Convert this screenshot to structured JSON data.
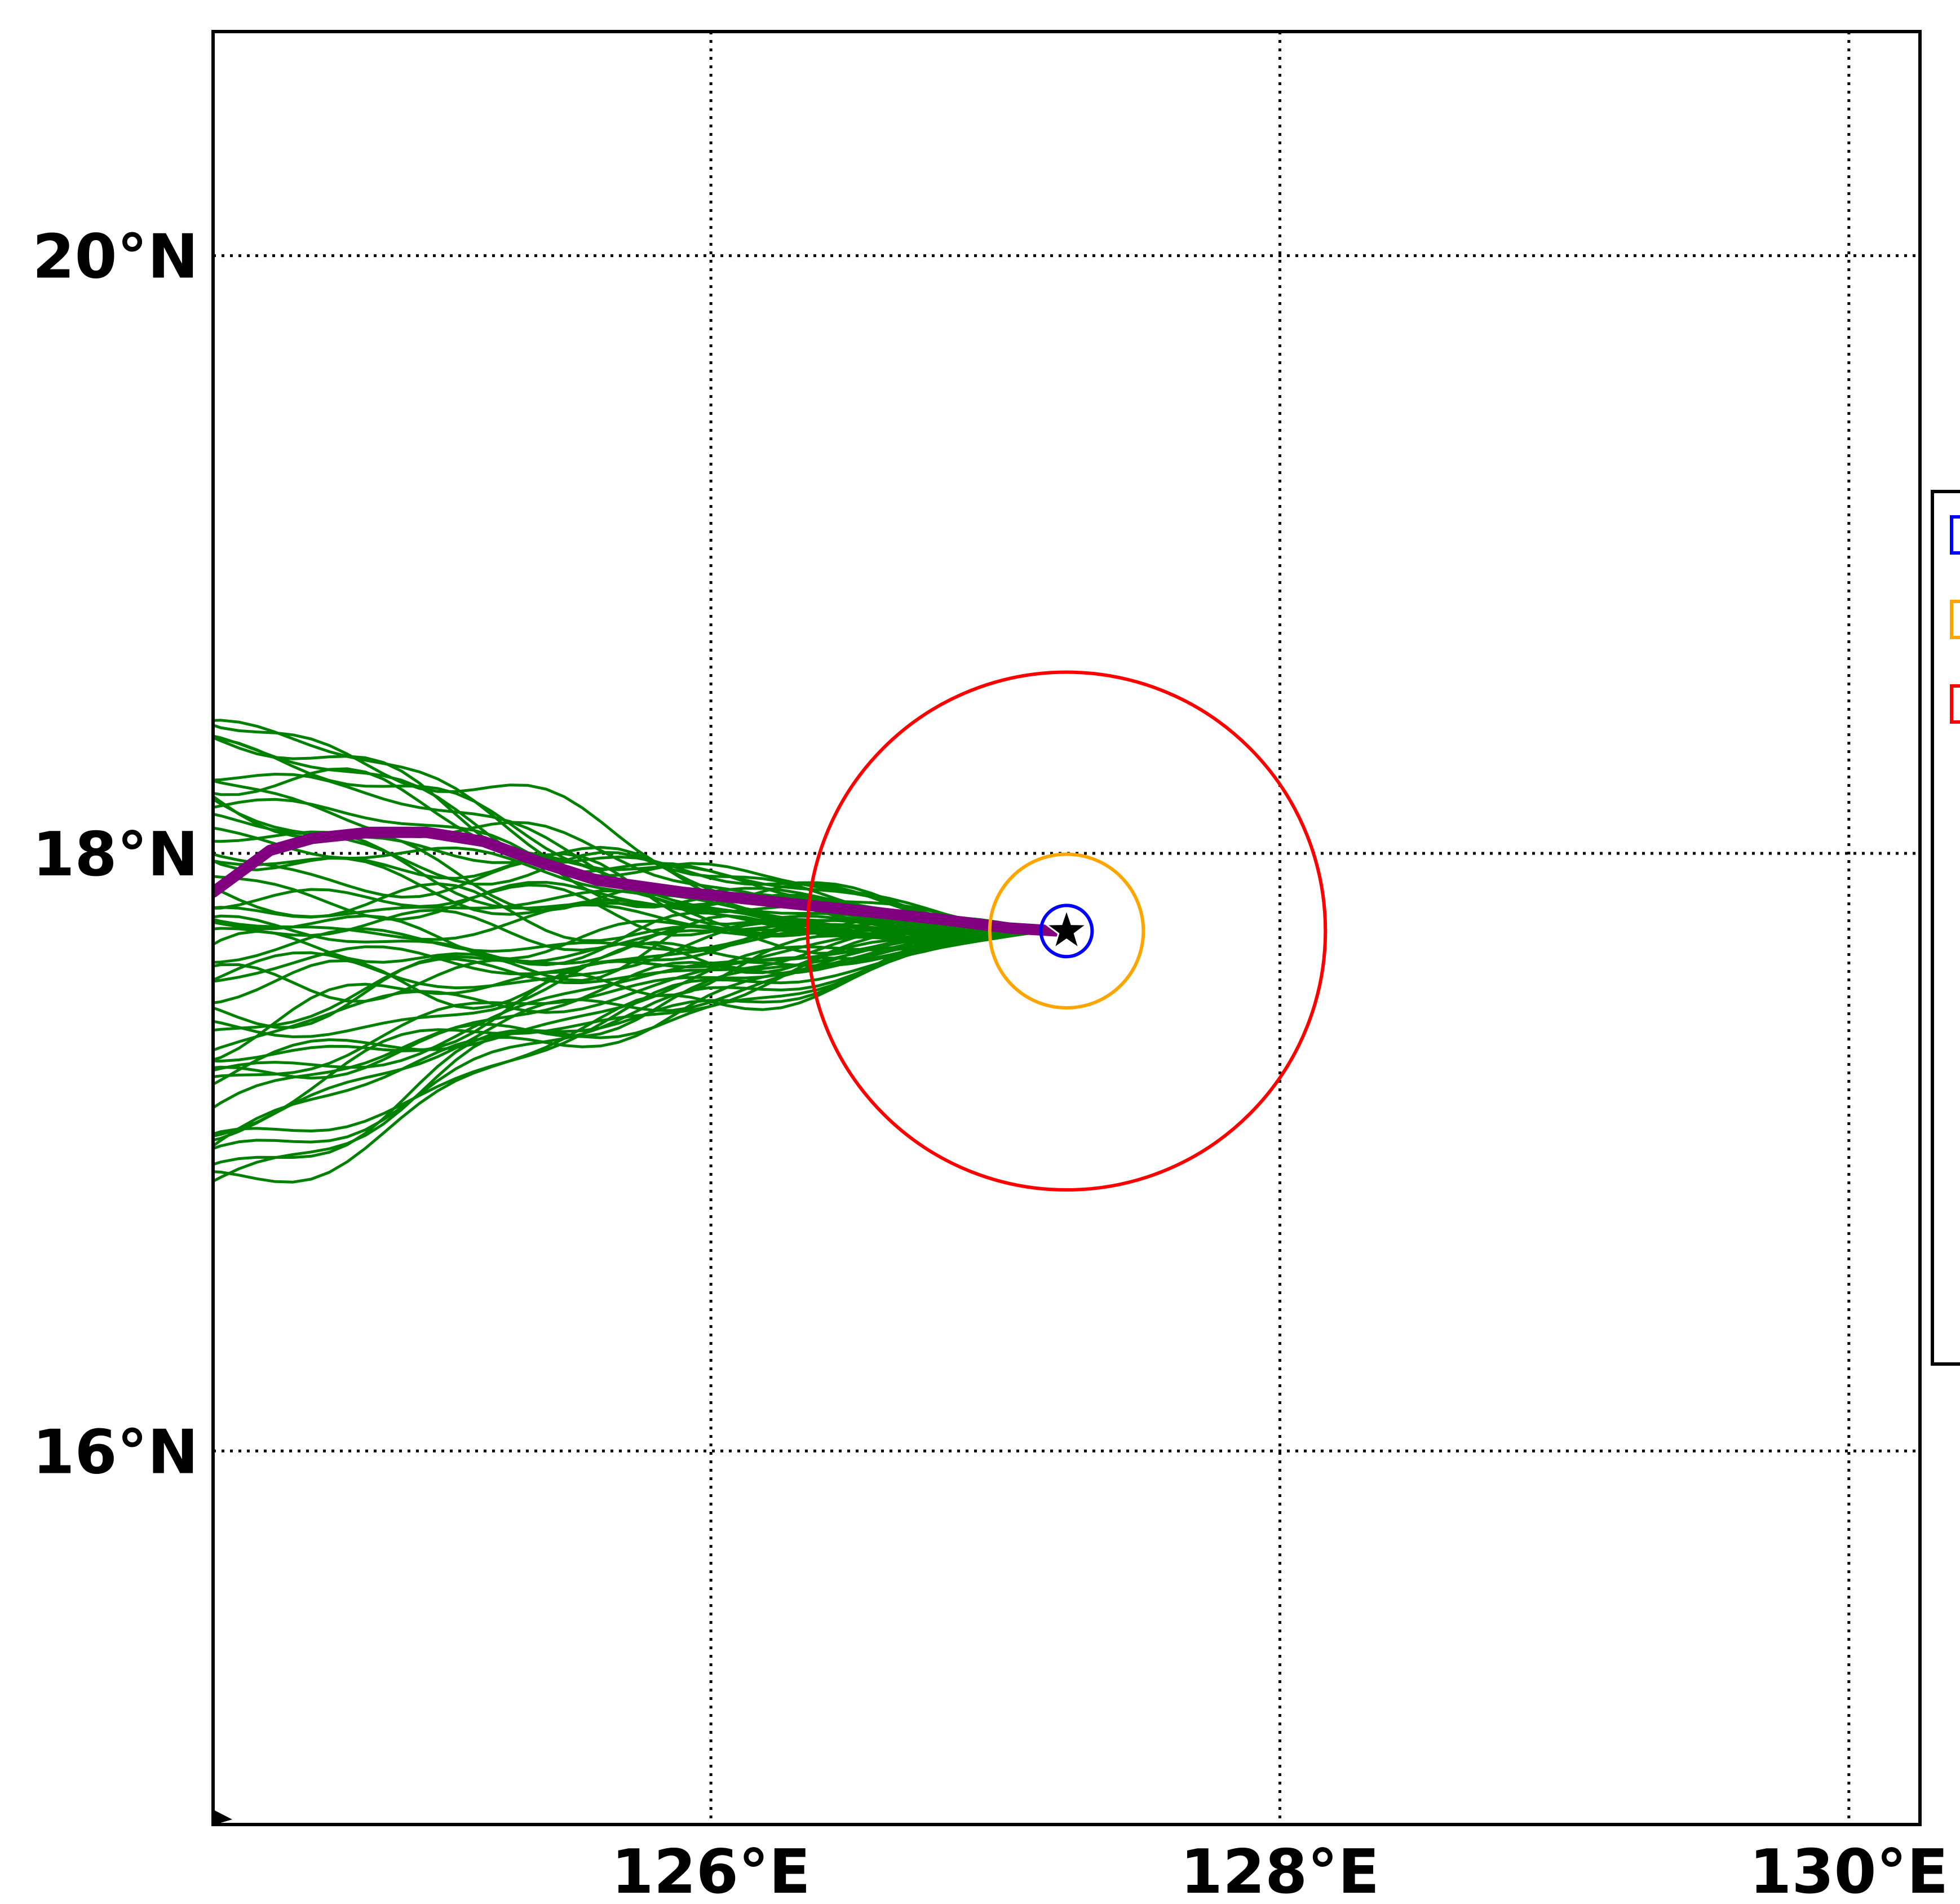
{
  "map": {
    "lat_ticks": [
      {
        "value": 20,
        "label": "20°N"
      },
      {
        "value": 18,
        "label": "18°N"
      },
      {
        "value": 16,
        "label": "16°N"
      }
    ],
    "lon_ticks": [
      {
        "value": 126,
        "label": "126°E"
      },
      {
        "value": 128,
        "label": "128°E"
      },
      {
        "value": 130,
        "label": "130°E"
      }
    ],
    "extent": {
      "lon_min": 124.25,
      "lon_max": 130.25,
      "lat_min": 14.75,
      "lat_max": 20.75
    },
    "grid": "dotted",
    "center": {
      "lon": 127.25,
      "lat": 17.74
    },
    "rings": [
      {
        "radius_deg": 0.09,
        "color": "#0000ff",
        "name": "blue-ring"
      },
      {
        "radius_deg": 0.27,
        "color": "#ffa500",
        "name": "orange-ring"
      },
      {
        "radius_deg": 0.91,
        "color": "#ff0000",
        "name": "red-ring"
      }
    ],
    "ensemble_color": "#008000",
    "ensemble_count": 50,
    "mean_track": {
      "color": "#800080",
      "points": [
        [
          124.25,
          17.87
        ],
        [
          124.45,
          18.01
        ],
        [
          124.6,
          18.05
        ],
        [
          124.8,
          18.07
        ],
        [
          125.0,
          18.07
        ],
        [
          125.2,
          18.04
        ],
        [
          125.4,
          17.97
        ],
        [
          125.6,
          17.91
        ],
        [
          125.9,
          17.87
        ],
        [
          126.2,
          17.84
        ],
        [
          126.5,
          17.81
        ],
        [
          126.8,
          17.78
        ],
        [
          127.05,
          17.75
        ],
        [
          127.22,
          17.74
        ]
      ]
    },
    "legend": {
      "swatch_colors": [
        "#0000ff",
        "#ffa500",
        "#ff0000"
      ]
    }
  }
}
